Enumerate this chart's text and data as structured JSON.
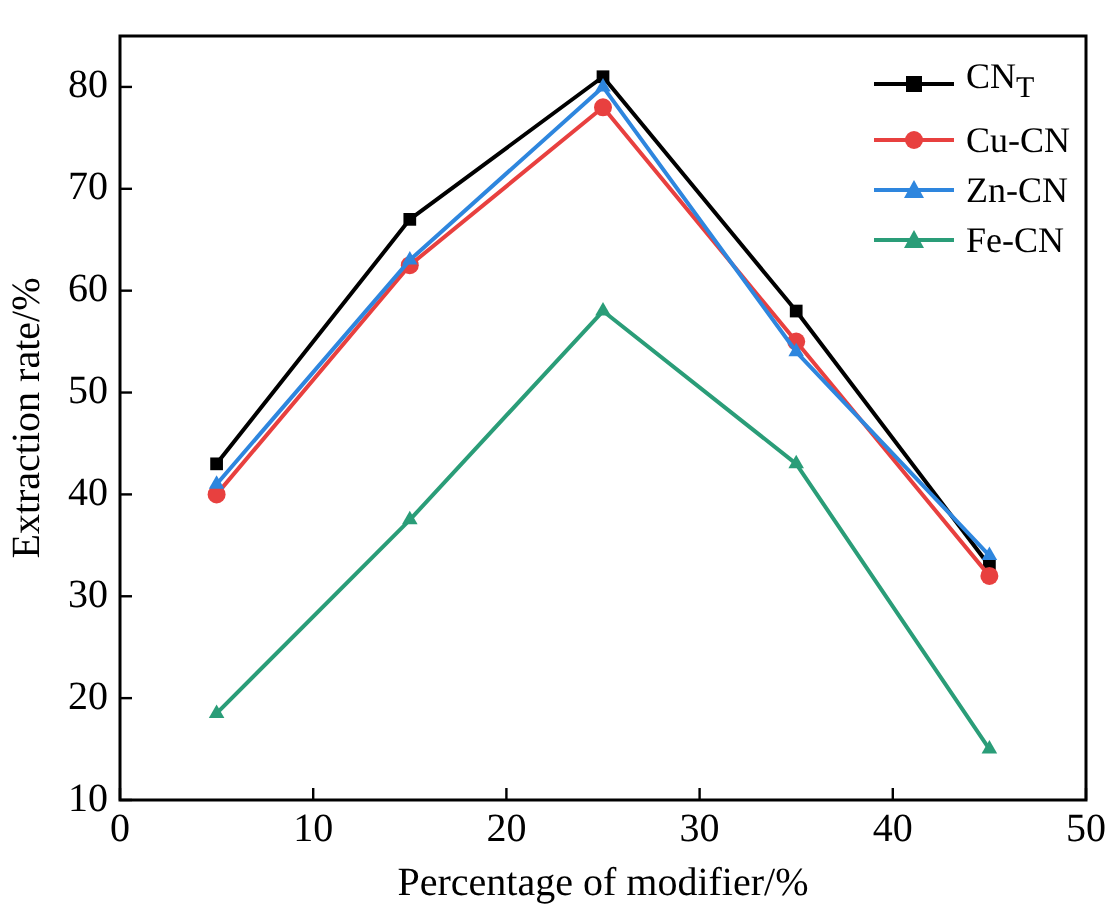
{
  "chart_data": {
    "type": "line",
    "xlabel": "Percentage of modifier/%",
    "ylabel": "Extraction rate/%",
    "x": [
      5,
      15,
      25,
      35,
      45
    ],
    "series": [
      {
        "name": "CN$_{T}$",
        "color": "#000000",
        "marker": "square",
        "values": [
          43,
          67,
          81,
          58,
          33
        ]
      },
      {
        "name": "Cu-CN",
        "color": "#e8403f",
        "marker": "circle",
        "values": [
          40,
          62.5,
          78,
          55,
          32
        ]
      },
      {
        "name": "Zn-CN",
        "color": "#2e86de",
        "marker": "triangle",
        "values": [
          41,
          63,
          80,
          54,
          34
        ]
      },
      {
        "name": "Fe-CN",
        "color": "#2a9d78",
        "marker": "triangle",
        "values": [
          18.5,
          37.5,
          58,
          43,
          15
        ]
      }
    ],
    "xlim": [
      0,
      50
    ],
    "xticks": [
      0,
      10,
      20,
      30,
      40,
      50
    ],
    "ylim": [
      10,
      85
    ],
    "yticks": [
      10,
      20,
      30,
      40,
      50,
      60,
      70,
      80
    ],
    "grid": false,
    "legend": "top right",
    "line_style": "solid"
  }
}
